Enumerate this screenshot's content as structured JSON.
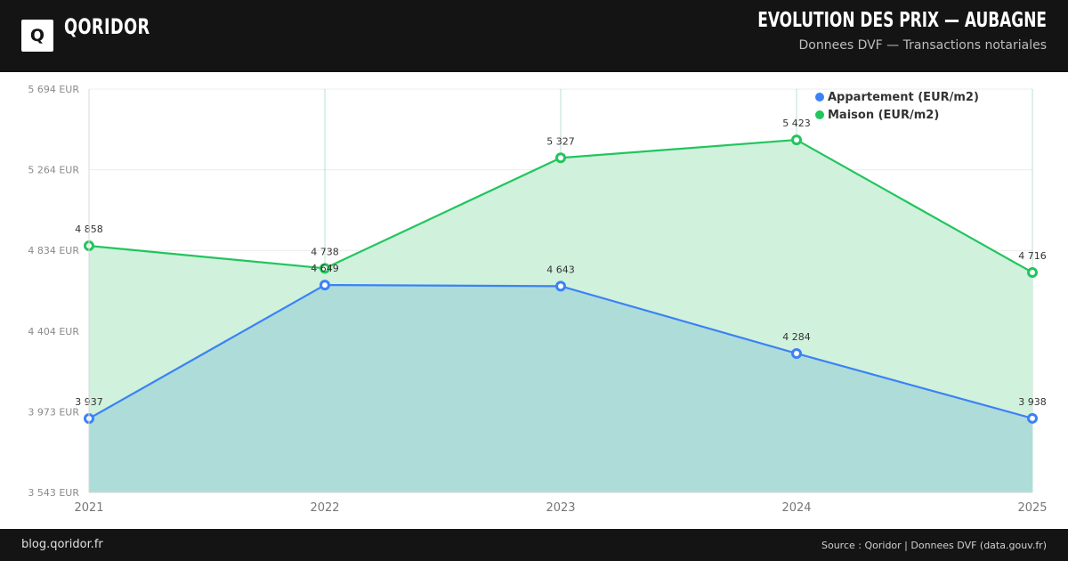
{
  "header": {
    "logo_letter": "Q",
    "brand": "QORIDOR",
    "title": "EVOLUTION DES PRIX — AUBAGNE",
    "subtitle": "Donnees DVF — Transactions notariales"
  },
  "footer": {
    "left": "blog.qoridor.fr",
    "right": "Source : Qoridor | Donnees DVF (data.gouv.fr)"
  },
  "colors": {
    "header_bg": "#141414",
    "appartement": "#3b82f6",
    "maison": "#22c55e",
    "maison_fill": "#d0f1dc",
    "appartement_fill": "#acdad8"
  },
  "chart_data": {
    "type": "area",
    "x": [
      "2021",
      "2022",
      "2023",
      "2024",
      "2025"
    ],
    "y_ticks": [
      "5 694 EUR",
      "5 264 EUR",
      "4 834 EUR",
      "4 404 EUR",
      "3 973 EUR",
      "3 543 EUR"
    ],
    "ylim": [
      3543,
      5694
    ],
    "series": [
      {
        "name": "Appartement (EUR/m2)",
        "values": [
          3937,
          4649,
          4643,
          4284,
          3938
        ],
        "labels": [
          "3 937",
          "4 649",
          "4 643",
          "4 284",
          "3 938"
        ]
      },
      {
        "name": "Maison (EUR/m2)",
        "values": [
          4858,
          4738,
          5327,
          5423,
          4716
        ],
        "labels": [
          "4 858",
          "4 738",
          "5 327",
          "5 423",
          "4 716"
        ]
      }
    ],
    "legend_position": "top-right",
    "grid": true
  }
}
